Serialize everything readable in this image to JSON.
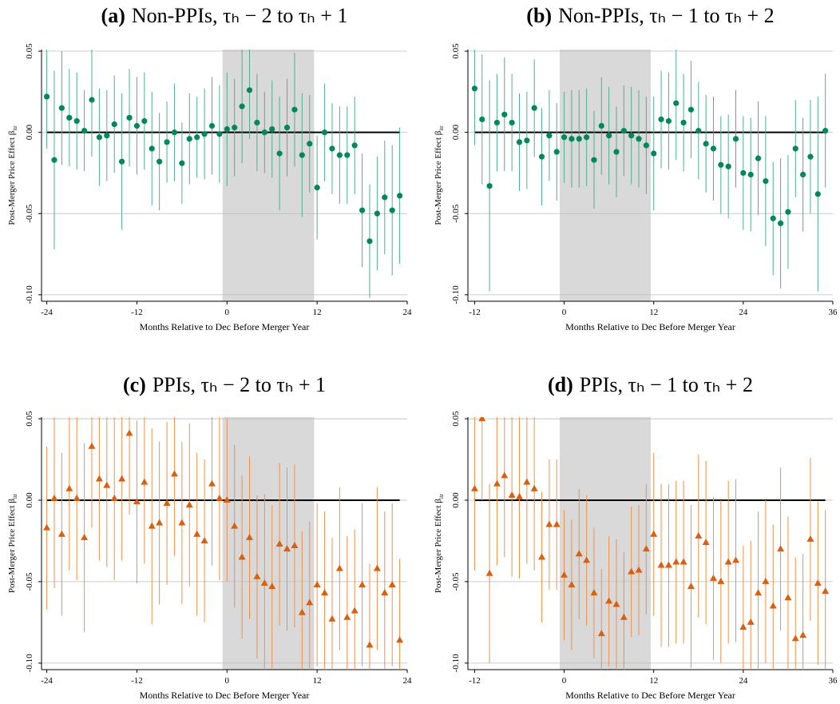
{
  "chart_data": [
    {
      "type": "errorbar",
      "panel_label": "(a)",
      "title": "Non-PPIs, τₕ − 2 to τₕ + 1",
      "xlabel": "Months Relative to Dec Before Merger Year",
      "ylabel": "Post-Merger Price Effect β",
      "ylabel_sub": "itr",
      "xlim": [
        -24.7,
        24
      ],
      "ylim": [
        -0.104,
        0.051
      ],
      "xticks": [
        -24,
        -12,
        0,
        12,
        24
      ],
      "yticks": [
        {
          "value": 0.05,
          "label": "0.05"
        },
        {
          "value": 0,
          "label": "0.00"
        },
        {
          "value": -0.05,
          "label": "-0.05"
        },
        {
          "value": -0.1,
          "label": "-0.10"
        }
      ],
      "grid": true,
      "shade": [
        -0.6,
        11.6
      ],
      "hline": 0,
      "marker": "circle",
      "color": "#00875a",
      "bar_color": "#4fae92",
      "x": [
        -24,
        -23,
        -22,
        -21,
        -20,
        -19,
        -18,
        -17,
        -16,
        -15,
        -14,
        -13,
        -12,
        -11,
        -10,
        -9,
        -8,
        -7,
        -6,
        -5,
        -4,
        -3,
        -2,
        -1,
        0,
        1,
        2,
        3,
        4,
        5,
        6,
        7,
        8,
        9,
        10,
        11,
        12,
        13,
        14,
        15,
        16,
        17,
        18,
        19,
        20,
        21,
        22,
        23
      ],
      "values": [
        0.022,
        -0.017,
        0.015,
        0.009,
        0.007,
        0.001,
        0.02,
        -0.003,
        -0.002,
        0.005,
        -0.018,
        0.009,
        0.004,
        0.007,
        -0.01,
        -0.018,
        -0.006,
        0,
        -0.019,
        -0.004,
        -0.003,
        -0.001,
        0.004,
        -0.001,
        0.002,
        0.003,
        0.016,
        0.026,
        0.006,
        0,
        0.002,
        -0.013,
        0.003,
        0.014,
        -0.014,
        -0.007,
        -0.034,
        0,
        -0.01,
        -0.014,
        -0.014,
        -0.008,
        -0.048,
        -0.067,
        -0.05,
        -0.04,
        -0.048,
        -0.039
      ],
      "errors": [
        0.032,
        0.055,
        0.035,
        0.03,
        0.03,
        0.025,
        0.035,
        0.03,
        0.028,
        0.03,
        0.042,
        0.03,
        0.03,
        0.03,
        0.035,
        0.03,
        0.025,
        0.03,
        0.025,
        0.028,
        0.025,
        0.028,
        0.03,
        0.03,
        0.035,
        0.03,
        0.035,
        0.03,
        0.03,
        0.025,
        0.03,
        0.035,
        0.03,
        0.035,
        0.038,
        0.03,
        0.032,
        0.03,
        0.028,
        0.03,
        0.03,
        0.03,
        0.035,
        0.035,
        0.035,
        0.035,
        0.04,
        0.042
      ]
    },
    {
      "type": "errorbar",
      "panel_label": "(b)",
      "title": "Non-PPIs, τₕ − 1 to τₕ + 2",
      "xlabel": "Months Relative to Dec Before Merger Year",
      "ylabel": "Post-Merger Price Effect β",
      "ylabel_sub": "itr",
      "xlim": [
        -12.9,
        36
      ],
      "ylim": [
        -0.104,
        0.051
      ],
      "xticks": [
        -12,
        0,
        12,
        24,
        36
      ],
      "yticks": [
        {
          "value": 0.05,
          "label": "0.05"
        },
        {
          "value": 0,
          "label": "0.00"
        },
        {
          "value": -0.05,
          "label": "-0.05"
        },
        {
          "value": -0.1,
          "label": "-0.10"
        }
      ],
      "grid": true,
      "shade": [
        -0.6,
        11.6
      ],
      "hline": 0,
      "marker": "circle",
      "color": "#00875a",
      "bar_color": "#4fae92",
      "x": [
        -12,
        -11,
        -10,
        -9,
        -8,
        -7,
        -6,
        -5,
        -4,
        -3,
        -2,
        -1,
        0,
        1,
        2,
        3,
        4,
        5,
        6,
        7,
        8,
        9,
        10,
        11,
        12,
        13,
        14,
        15,
        16,
        17,
        18,
        19,
        20,
        21,
        22,
        23,
        24,
        25,
        26,
        27,
        28,
        29,
        30,
        31,
        32,
        33,
        34,
        35
      ],
      "values": [
        0.027,
        0.008,
        -0.033,
        0.006,
        0.011,
        0.006,
        -0.006,
        -0.005,
        0.015,
        -0.015,
        -0.002,
        -0.012,
        -0.003,
        -0.004,
        -0.004,
        -0.003,
        -0.017,
        0.004,
        -0.002,
        -0.012,
        0.001,
        -0.002,
        -0.004,
        -0.008,
        -0.013,
        0.008,
        0.007,
        0.018,
        0.006,
        0.014,
        0.001,
        -0.007,
        -0.01,
        -0.02,
        -0.021,
        -0.004,
        -0.025,
        -0.026,
        -0.016,
        -0.03,
        -0.053,
        -0.056,
        -0.049,
        -0.01,
        -0.026,
        -0.015,
        -0.038,
        0.001
      ],
      "errors": [
        0.035,
        0.04,
        0.065,
        0.03,
        0.035,
        0.03,
        0.03,
        0.03,
        0.03,
        0.03,
        0.028,
        0.03,
        0.028,
        0.03,
        0.03,
        0.03,
        0.03,
        0.03,
        0.03,
        0.028,
        0.028,
        0.03,
        0.03,
        0.03,
        0.035,
        0.03,
        0.03,
        0.035,
        0.03,
        0.03,
        0.03,
        0.03,
        0.032,
        0.03,
        0.032,
        0.03,
        0.035,
        0.035,
        0.035,
        0.04,
        0.035,
        0.04,
        0.035,
        0.03,
        0.035,
        0.035,
        0.06,
        0.035
      ]
    },
    {
      "type": "errorbar",
      "panel_label": "(c)",
      "title": "PPIs, τₕ − 2 to τₕ + 1",
      "xlabel": "Months Relative to Dec Before Merger Year",
      "ylabel": "Post-Merger Price Effect β",
      "ylabel_sub": "itr",
      "xlim": [
        -24.7,
        24
      ],
      "ylim": [
        -0.104,
        0.051
      ],
      "xticks": [
        -24,
        -12,
        0,
        12,
        24
      ],
      "yticks": [
        {
          "value": 0.05,
          "label": "0.05"
        },
        {
          "value": 0,
          "label": "0.00"
        },
        {
          "value": -0.05,
          "label": "-0.05"
        },
        {
          "value": -0.1,
          "label": "-0.10"
        }
      ],
      "grid": true,
      "shade": [
        -0.6,
        11.6
      ],
      "hline": 0,
      "marker": "triangle",
      "color": "#d9600f",
      "bar_color": "#f0904a",
      "x": [
        -24,
        -23,
        -22,
        -21,
        -20,
        -19,
        -18,
        -17,
        -16,
        -15,
        -14,
        -13,
        -12,
        -11,
        -10,
        -9,
        -8,
        -7,
        -6,
        -5,
        -4,
        -3,
        -2,
        -1,
        0,
        1,
        2,
        3,
        4,
        5,
        6,
        7,
        8,
        9,
        10,
        11,
        12,
        13,
        14,
        15,
        16,
        17,
        18,
        19,
        20,
        21,
        22,
        23
      ],
      "values": [
        -0.017,
        0.001,
        -0.021,
        0.007,
        0.001,
        -0.023,
        0.033,
        0.013,
        0.009,
        0.001,
        0.013,
        0.041,
        -0.001,
        0.011,
        -0.016,
        -0.014,
        -0.002,
        0.016,
        -0.014,
        -0.003,
        -0.021,
        -0.025,
        0.01,
        0.001,
        0,
        -0.016,
        -0.035,
        -0.023,
        -0.047,
        -0.051,
        -0.053,
        -0.027,
        -0.03,
        -0.028,
        -0.069,
        -0.063,
        -0.052,
        -0.057,
        -0.073,
        -0.042,
        -0.072,
        -0.068,
        -0.052,
        -0.089,
        -0.042,
        -0.057,
        -0.052,
        -0.086
      ],
      "errors": [
        0.05,
        0.055,
        0.05,
        0.05,
        0.05,
        0.058,
        0.05,
        0.05,
        0.05,
        0.05,
        0.05,
        0.05,
        0.05,
        0.05,
        0.06,
        0.05,
        0.05,
        0.05,
        0.05,
        0.05,
        0.05,
        0.05,
        0.05,
        0.05,
        0.05,
        0.05,
        0.05,
        0.05,
        0.05,
        0.055,
        0.05,
        0.05,
        0.05,
        0.05,
        0.05,
        0.05,
        0.05,
        0.05,
        0.05,
        0.05,
        0.05,
        0.05,
        0.05,
        0.05,
        0.05,
        0.05,
        0.05,
        0.05
      ]
    },
    {
      "type": "errorbar",
      "panel_label": "(d)",
      "title": "PPIs, τₕ − 1 to τₕ + 2",
      "xlabel": "Months Relative to Dec Before Merger Year",
      "ylabel": "Post-Merger Price Effect β",
      "ylabel_sub": "itr",
      "xlim": [
        -12.9,
        36
      ],
      "ylim": [
        -0.104,
        0.051
      ],
      "xticks": [
        -12,
        0,
        12,
        24,
        36
      ],
      "yticks": [
        {
          "value": 0.05,
          "label": "0.05"
        },
        {
          "value": 0,
          "label": "0.00"
        },
        {
          "value": -0.05,
          "label": "-0.05"
        },
        {
          "value": -0.1,
          "label": "-0.10"
        }
      ],
      "grid": true,
      "shade": [
        -0.6,
        11.6
      ],
      "hline": 0,
      "marker": "triangle",
      "color": "#d9600f",
      "bar_color": "#f0904a",
      "x": [
        -12,
        -11,
        -10,
        -9,
        -8,
        -7,
        -6,
        -5,
        -4,
        -3,
        -2,
        -1,
        0,
        1,
        2,
        3,
        4,
        5,
        6,
        7,
        8,
        9,
        10,
        11,
        12,
        13,
        14,
        15,
        16,
        17,
        18,
        19,
        20,
        21,
        22,
        23,
        24,
        25,
        26,
        27,
        28,
        29,
        30,
        31,
        32,
        33,
        34,
        35
      ],
      "values": [
        0.007,
        0.05,
        -0.045,
        0.01,
        0.015,
        0.003,
        0.002,
        0.011,
        0.007,
        -0.035,
        -0.015,
        -0.015,
        -0.046,
        -0.052,
        -0.033,
        -0.037,
        -0.057,
        -0.082,
        -0.062,
        -0.064,
        -0.072,
        -0.044,
        -0.043,
        -0.03,
        -0.021,
        -0.04,
        -0.04,
        -0.038,
        -0.038,
        -0.053,
        -0.022,
        -0.026,
        -0.048,
        -0.05,
        -0.038,
        -0.037,
        -0.078,
        -0.075,
        -0.057,
        -0.05,
        -0.065,
        -0.03,
        -0.06,
        -0.085,
        -0.083,
        -0.024,
        -0.051,
        -0.056
      ],
      "errors": [
        0.05,
        0.05,
        0.055,
        0.05,
        0.05,
        0.05,
        0.05,
        0.05,
        0.05,
        0.04,
        0.04,
        0.04,
        0.04,
        0.04,
        0.04,
        0.04,
        0.04,
        0.04,
        0.04,
        0.04,
        0.04,
        0.04,
        0.04,
        0.04,
        0.05,
        0.05,
        0.05,
        0.05,
        0.05,
        0.05,
        0.05,
        0.05,
        0.05,
        0.05,
        0.05,
        0.05,
        0.05,
        0.05,
        0.05,
        0.05,
        0.05,
        0.05,
        0.05,
        0.05,
        0.05,
        0.05,
        0.05,
        0.05
      ]
    }
  ]
}
